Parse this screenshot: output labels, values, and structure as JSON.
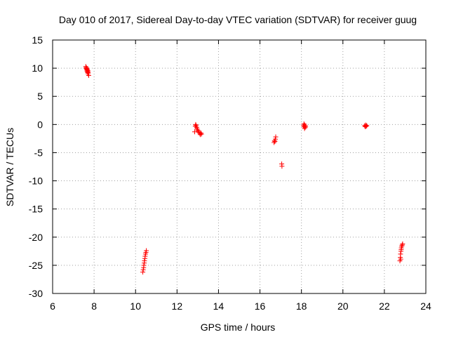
{
  "chart_data": {
    "type": "scatter",
    "title": "Day 010 of 2017, Sidereal Day-to-day VTEC variation (SDTVAR) for receiver guug",
    "xlabel": "GPS time / hours",
    "ylabel": "SDTVAR / TECUs",
    "xlim": [
      6,
      24
    ],
    "ylim": [
      -30,
      15
    ],
    "xticks": [
      6,
      8,
      10,
      12,
      14,
      16,
      18,
      20,
      22,
      24
    ],
    "yticks": [
      15,
      10,
      5,
      0,
      -5,
      -10,
      -15,
      -20,
      -25,
      -30
    ],
    "grid": true,
    "marker": "+",
    "color": "#ff0000",
    "series": [
      {
        "name": "SDTVAR",
        "points": [
          [
            7.6,
            10.3
          ],
          [
            7.62,
            10.1
          ],
          [
            7.63,
            9.9
          ],
          [
            7.64,
            10.0
          ],
          [
            7.65,
            9.7
          ],
          [
            7.66,
            9.5
          ],
          [
            7.67,
            9.8
          ],
          [
            7.68,
            9.4
          ],
          [
            7.69,
            9.2
          ],
          [
            7.7,
            9.6
          ],
          [
            7.71,
            9.0
          ],
          [
            7.72,
            9.3
          ],
          [
            7.74,
            8.7
          ],
          [
            10.35,
            -26.2
          ],
          [
            10.37,
            -25.8
          ],
          [
            10.39,
            -25.4
          ],
          [
            10.4,
            -25.0
          ],
          [
            10.42,
            -24.6
          ],
          [
            10.43,
            -24.2
          ],
          [
            10.45,
            -23.8
          ],
          [
            10.46,
            -23.4
          ],
          [
            10.48,
            -23.0
          ],
          [
            10.5,
            -22.7
          ],
          [
            10.52,
            -22.4
          ],
          [
            12.85,
            -1.3
          ],
          [
            12.88,
            -0.3
          ],
          [
            12.9,
            0.0
          ],
          [
            12.92,
            -0.2
          ],
          [
            12.95,
            -0.5
          ],
          [
            12.97,
            -0.8
          ],
          [
            13.0,
            -1.0
          ],
          [
            13.03,
            -1.2
          ],
          [
            13.06,
            -1.4
          ],
          [
            13.1,
            -1.6
          ],
          [
            13.12,
            -1.8
          ],
          [
            13.15,
            -1.5
          ],
          [
            13.18,
            -1.7
          ],
          [
            16.68,
            -3.2
          ],
          [
            16.7,
            -2.9
          ],
          [
            16.72,
            -3.0
          ],
          [
            16.74,
            -2.6
          ],
          [
            16.76,
            -2.2
          ],
          [
            17.05,
            -7.0
          ],
          [
            17.06,
            -7.4
          ],
          [
            18.1,
            -0.2
          ],
          [
            18.12,
            0.1
          ],
          [
            18.14,
            -0.4
          ],
          [
            18.15,
            -0.7
          ],
          [
            18.16,
            -0.1
          ],
          [
            18.18,
            -0.5
          ],
          [
            18.2,
            -0.3
          ],
          [
            21.05,
            -0.2
          ],
          [
            21.08,
            -0.4
          ],
          [
            21.1,
            -0.1
          ],
          [
            21.12,
            -0.3
          ],
          [
            21.15,
            -0.2
          ],
          [
            22.75,
            -24.2
          ],
          [
            22.77,
            -23.6
          ],
          [
            22.78,
            -23.0
          ],
          [
            22.79,
            -23.9
          ],
          [
            22.8,
            -22.5
          ],
          [
            22.81,
            -22.2
          ],
          [
            22.82,
            -21.9
          ],
          [
            22.84,
            -21.6
          ],
          [
            22.86,
            -21.4
          ],
          [
            22.88,
            -21.2
          ]
        ]
      }
    ]
  }
}
